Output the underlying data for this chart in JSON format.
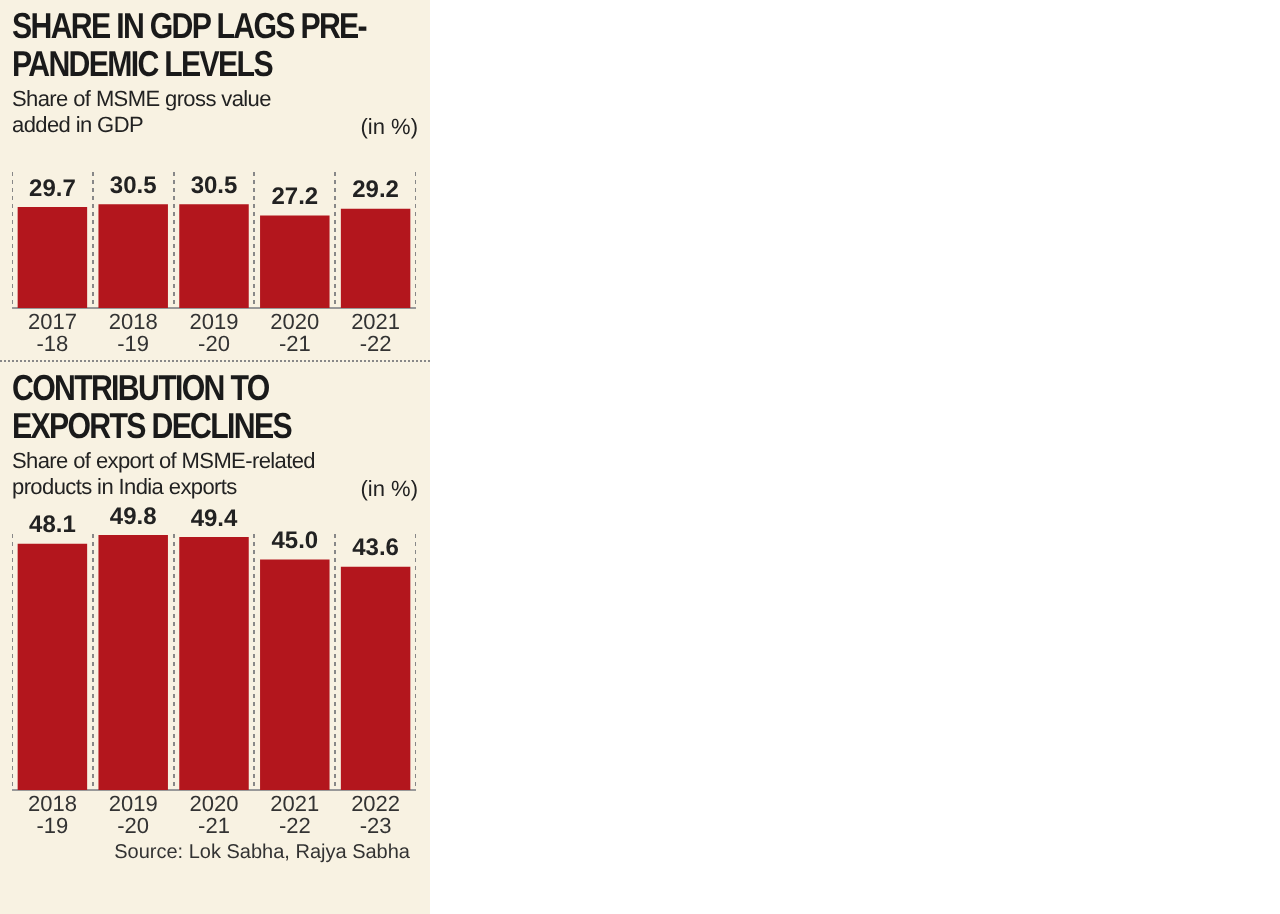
{
  "chart_data": [
    {
      "type": "bar",
      "title": "SHARE IN GDP LAGS PRE-PANDEMIC LEVELS",
      "subtitle": "Share of MSME gross value added in GDP",
      "annotations": [
        "(in %)"
      ],
      "categories": [
        "2017-18",
        "2018-19",
        "2019-20",
        "2020-21",
        "2021-22"
      ],
      "values": [
        29.7,
        30.5,
        30.5,
        27.2,
        29.2
      ],
      "value_labels": [
        "29.7",
        "30.5",
        "30.5",
        "27.2",
        "29.2"
      ],
      "color": "#b3161d",
      "grid": "x",
      "tick_labels": "x"
    },
    {
      "type": "bar",
      "title": "CONTRIBUTION TO EXPORTS DECLINES",
      "subtitle": "Share of export of MSME-related products in India exports",
      "annotations": [
        "(in %)",
        "Source: Lok Sabha, Rajya Sabha"
      ],
      "categories": [
        "2018-19",
        "2019-20",
        "2020-21",
        "2021-22",
        "2022-23"
      ],
      "values": [
        48.1,
        49.8,
        49.4,
        45.0,
        43.6
      ],
      "value_labels": [
        "48.1",
        "49.8",
        "49.4",
        "45.0",
        "43.6"
      ],
      "color": "#b3161d",
      "grid": "x",
      "tick_labels": "x"
    }
  ]
}
